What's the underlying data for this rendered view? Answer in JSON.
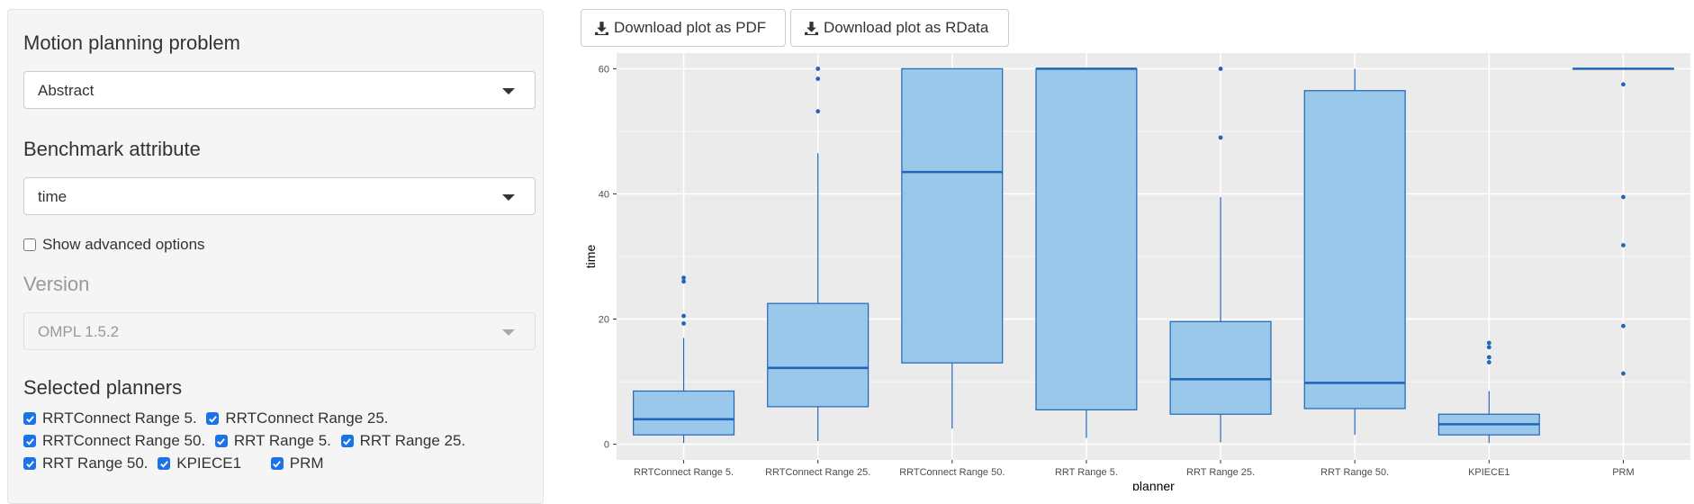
{
  "sidebar": {
    "problem_label": "Motion planning problem",
    "problem_value": "Abstract",
    "attribute_label": "Benchmark attribute",
    "attribute_value": "time",
    "advanced_label": "Show advanced options",
    "advanced_checked": false,
    "version_label": "Version",
    "version_value": "OMPL 1.5.2",
    "planners_label": "Selected planners",
    "planners": [
      {
        "label": "RRTConnect Range 5.",
        "checked": true
      },
      {
        "label": "RRTConnect Range 25.",
        "checked": true
      },
      {
        "label": "RRTConnect Range 50.",
        "checked": true
      },
      {
        "label": "RRT Range 5.",
        "checked": true
      },
      {
        "label": "RRT Range 25.",
        "checked": true
      },
      {
        "label": "RRT Range 50.",
        "checked": true
      },
      {
        "label": "KPIECE1",
        "checked": true
      },
      {
        "label": "PRM",
        "checked": true
      }
    ]
  },
  "toolbar": {
    "pdf_label": "Download plot as PDF",
    "rdata_label": "Download plot as RData"
  },
  "colors": {
    "box_fill": "#99c8ea",
    "box_line": "#2166b8",
    "panel_bg": "#ebebeb",
    "checkbox": "#1a73e8"
  },
  "chart_data": {
    "type": "boxplot",
    "xlabel": "planner",
    "ylabel": "time",
    "ylim": [
      -2.5,
      62.5
    ],
    "yticks": [
      0,
      20,
      40,
      60
    ],
    "grid": true,
    "categories": [
      "RRTConnect Range 5.",
      "RRTConnect Range 25.",
      "RRTConnect Range 50.",
      "RRT Range 5.",
      "RRT Range 25.",
      "RRT Range 50.",
      "KPIECE1",
      "PRM"
    ],
    "boxes": [
      {
        "min": 0.2,
        "q1": 1.5,
        "median": 4.0,
        "q3": 8.5,
        "max": 17.0,
        "outliers": [
          19.3,
          20.5,
          26.0,
          26.6
        ]
      },
      {
        "min": 0.5,
        "q1": 6.0,
        "median": 12.2,
        "q3": 22.5,
        "max": 46.5,
        "outliers": [
          53.2,
          58.4,
          60.0
        ]
      },
      {
        "min": 2.5,
        "q1": 13.0,
        "median": 43.5,
        "q3": 60.0,
        "max": 60.0,
        "outliers": []
      },
      {
        "min": 1.0,
        "q1": 5.5,
        "median": 60.0,
        "q3": 60.0,
        "max": 60.0,
        "outliers": []
      },
      {
        "min": 0.3,
        "q1": 4.8,
        "median": 10.4,
        "q3": 19.6,
        "max": 39.5,
        "outliers": [
          49.0,
          60.0
        ]
      },
      {
        "min": 1.5,
        "q1": 5.7,
        "median": 9.8,
        "q3": 56.5,
        "max": 60.0,
        "outliers": []
      },
      {
        "min": 0.2,
        "q1": 1.5,
        "median": 3.2,
        "q3": 4.8,
        "max": 8.5,
        "outliers": [
          13.1,
          13.9,
          15.5,
          16.2
        ]
      },
      {
        "min": 60.0,
        "q1": 60.0,
        "median": 60.0,
        "q3": 60.0,
        "max": 60.0,
        "outliers": [
          11.3,
          18.9,
          31.8,
          39.5,
          57.5
        ]
      }
    ]
  }
}
